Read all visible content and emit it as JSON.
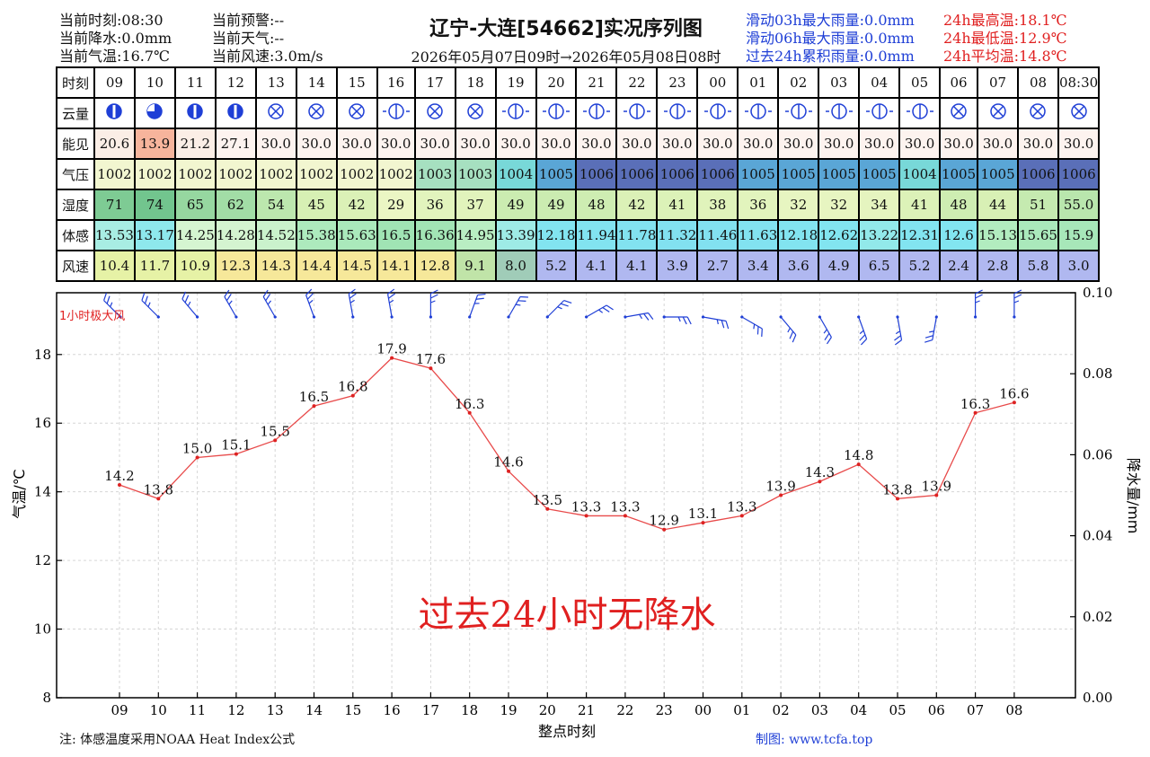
{
  "header": {
    "current_time": "当前时刻:08:30",
    "current_precip": "当前降水:0.0mm",
    "current_temp": "当前气温:16.7℃",
    "current_warning": "当前预警:--",
    "current_weather": "当前天气:--",
    "current_wind": "当前风速:3.0m/s",
    "title": "辽宁-大连[54662]实况序列图",
    "subtitle": "2026年05月07日09时→2026年05月08日08时",
    "rain_03h": "滑动03h最大雨量:0.0mm",
    "rain_06h": "滑动06h最大雨量:0.0mm",
    "rain_24h": "过去24h累积雨量:0.0mm",
    "max_temp": "24h最高温:18.1℃",
    "min_temp": "24h最低温:12.9℃",
    "avg_temp": "24h平均温:14.8℃"
  },
  "table": {
    "row_labels": [
      "时刻",
      "云量",
      "能见",
      "气压",
      "湿度",
      "体感",
      "风速"
    ],
    "hours": [
      "09",
      "10",
      "11",
      "12",
      "13",
      "14",
      "15",
      "16",
      "17",
      "18",
      "19",
      "20",
      "21",
      "22",
      "23",
      "00",
      "01",
      "02",
      "03",
      "04",
      "05",
      "06",
      "07",
      "08",
      "08:30"
    ],
    "visibility": [
      "20.6",
      "13.9",
      "21.2",
      "27.1",
      "30.0",
      "30.0",
      "30.0",
      "30.0",
      "30.0",
      "30.0",
      "30.0",
      "30.0",
      "30.0",
      "30.0",
      "30.0",
      "30.0",
      "30.0",
      "30.0",
      "30.0",
      "30.0",
      "30.0",
      "30.0",
      "30.0",
      "30.0",
      "30.0"
    ],
    "pressure": [
      "1002",
      "1002",
      "1002",
      "1002",
      "1002",
      "1002",
      "1002",
      "1002",
      "1003",
      "1003",
      "1004",
      "1005",
      "1006",
      "1006",
      "1006",
      "1006",
      "1005",
      "1005",
      "1005",
      "1005",
      "1004",
      "1005",
      "1005",
      "1006",
      "1006"
    ],
    "humidity": [
      "71",
      "74",
      "65",
      "62",
      "54",
      "45",
      "42",
      "29",
      "36",
      "37",
      "49",
      "49",
      "48",
      "42",
      "41",
      "38",
      "36",
      "32",
      "32",
      "34",
      "41",
      "48",
      "44",
      "51",
      "55.0"
    ],
    "feels_like": [
      "13.53",
      "13.17",
      "14.25",
      "14.28",
      "14.52",
      "15.38",
      "15.63",
      "16.5",
      "16.36",
      "14.95",
      "13.39",
      "12.18",
      "11.94",
      "11.78",
      "11.32",
      "11.46",
      "11.63",
      "12.18",
      "12.62",
      "13.22",
      "12.31",
      "12.6",
      "15.13",
      "15.65",
      "15.9"
    ],
    "wind_speed": [
      "10.4",
      "11.7",
      "10.9",
      "12.3",
      "14.3",
      "14.4",
      "14.5",
      "14.1",
      "12.8",
      "9.1",
      "8.0",
      "5.2",
      "4.1",
      "4.1",
      "3.9",
      "2.7",
      "3.4",
      "3.6",
      "4.9",
      "6.5",
      "5.2",
      "2.4",
      "2.8",
      "5.8",
      "3.0"
    ],
    "cloud_icons": [
      "cloud-partial",
      "cloud-mostly",
      "cloud-partial",
      "cloud-partial",
      "cloud-overcast",
      "cloud-overcast",
      "cloud-overcast",
      "cloud-half",
      "cloud-overcast",
      "cloud-overcast",
      "cloud-half",
      "cloud-half",
      "cloud-half",
      "cloud-half",
      "cloud-half",
      "cloud-half",
      "cloud-half",
      "cloud-half",
      "cloud-half",
      "cloud-half",
      "cloud-half",
      "cloud-overcast",
      "cloud-overcast",
      "cloud-overcast",
      "cloud-overcast"
    ]
  },
  "chart_data": {
    "type": "line",
    "x": [
      "09",
      "10",
      "11",
      "12",
      "13",
      "14",
      "15",
      "16",
      "17",
      "18",
      "19",
      "20",
      "21",
      "22",
      "23",
      "00",
      "01",
      "02",
      "03",
      "04",
      "05",
      "06",
      "07",
      "08"
    ],
    "series": [
      {
        "values": [
          14.2,
          13.8,
          15.0,
          15.1,
          15.5,
          16.5,
          16.8,
          17.9,
          17.6,
          16.3,
          14.6,
          13.5,
          13.3,
          13.3,
          12.9,
          13.1,
          13.3,
          13.9,
          14.3,
          14.8,
          13.8,
          13.9,
          16.3,
          16.6
        ]
      }
    ],
    "value_labels": [
      "14.2",
      "13.8",
      "15.0",
      "15.1",
      "15.5",
      "16.5",
      "16.8",
      "17.9",
      "17.6",
      "16.3",
      "14.6",
      "13.5",
      "13.3",
      "13.3",
      "12.9",
      "13.1",
      "13.3",
      "13.9",
      "14.3",
      "14.8",
      "13.8",
      "13.9",
      "16.3",
      "16.6"
    ],
    "wind_dirs_deg": [
      315,
      315,
      320,
      330,
      330,
      340,
      350,
      350,
      0,
      20,
      30,
      45,
      60,
      80,
      90,
      100,
      120,
      140,
      150,
      160,
      170,
      190,
      0,
      0
    ],
    "xlabel": "整点时刻",
    "ylabel": "气温/℃",
    "y2label": "降水量/mm",
    "ylim": [
      8,
      19.8
    ],
    "y2lim": [
      0,
      0.1
    ],
    "yticks": [
      "8",
      "10",
      "12",
      "14",
      "16",
      "18"
    ],
    "y2ticks": [
      "0.00",
      "0.02",
      "0.04",
      "0.06",
      "0.08",
      "0.10"
    ],
    "line_color": "#e84a4a",
    "wind_color": "#1f3fd6",
    "annotation_wind": "1小时极大风",
    "annotation_no_precip": "过去24小时无降水",
    "grid": true
  },
  "footer": {
    "note": "注: 体感温度采用NOAA Heat Index公式",
    "credit": "制图: www.tcfa.top"
  }
}
